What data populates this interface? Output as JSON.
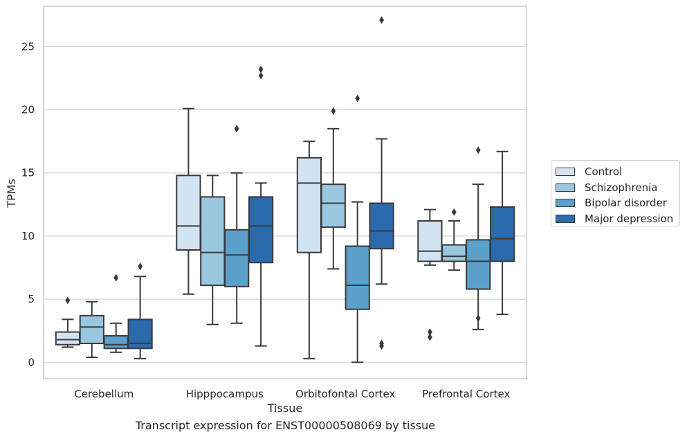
{
  "chart_data": {
    "type": "box",
    "title": "",
    "xlabel": "Tissue",
    "ylabel": "TPMs",
    "caption": "Transcript expression for ENST00000508069 by tissue",
    "ylim": [
      -1.3,
      28.2
    ],
    "yticks": [
      0,
      5,
      10,
      15,
      20,
      25
    ],
    "grid": "horizontal",
    "legend_position": "right",
    "categories": [
      "Cerebellum",
      "Hipppocampus",
      "Orbitofontal Cortex",
      "Prefrontal Cortex"
    ],
    "series": [
      {
        "name": "Control",
        "color": "#d2e3f2",
        "boxes": [
          {
            "whislo": 1.2,
            "q1": 1.4,
            "med": 1.8,
            "q3": 2.4,
            "whishi": 3.4,
            "fliers": [
              4.9
            ]
          },
          {
            "whislo": 5.4,
            "q1": 8.9,
            "med": 10.8,
            "q3": 14.8,
            "whishi": 20.1,
            "fliers": []
          },
          {
            "whislo": 0.3,
            "q1": 8.7,
            "med": 14.2,
            "q3": 16.2,
            "whishi": 17.5,
            "fliers": []
          },
          {
            "whislo": 7.7,
            "q1": 8.0,
            "med": 8.8,
            "q3": 11.2,
            "whishi": 12.1,
            "fliers": [
              2.0,
              2.4
            ]
          }
        ]
      },
      {
        "name": "Schizophrenia",
        "color": "#9ac7e0",
        "boxes": [
          {
            "whislo": 0.4,
            "q1": 1.5,
            "med": 2.8,
            "q3": 3.7,
            "whishi": 4.8,
            "fliers": []
          },
          {
            "whislo": 3.0,
            "q1": 6.1,
            "med": 8.7,
            "q3": 13.1,
            "whishi": 14.8,
            "fliers": []
          },
          {
            "whislo": 7.4,
            "q1": 10.7,
            "med": 12.6,
            "q3": 14.1,
            "whishi": 18.5,
            "fliers": [
              19.9
            ]
          },
          {
            "whislo": 7.3,
            "q1": 8.0,
            "med": 8.4,
            "q3": 9.3,
            "whishi": 11.2,
            "fliers": [
              11.9
            ]
          }
        ]
      },
      {
        "name": "Bipolar disorder",
        "color": "#5b9fcb",
        "boxes": [
          {
            "whislo": 0.8,
            "q1": 1.1,
            "med": 1.4,
            "q3": 2.1,
            "whishi": 3.1,
            "fliers": [
              6.7
            ]
          },
          {
            "whislo": 3.1,
            "q1": 6.0,
            "med": 8.5,
            "q3": 10.5,
            "whishi": 15.0,
            "fliers": [
              18.5
            ]
          },
          {
            "whislo": 0.0,
            "q1": 4.2,
            "med": 6.1,
            "q3": 9.2,
            "whishi": 12.7,
            "fliers": [
              20.9
            ]
          },
          {
            "whislo": 2.6,
            "q1": 5.8,
            "med": 8.0,
            "q3": 9.7,
            "whishi": 14.1,
            "fliers": [
              3.5,
              16.8
            ]
          }
        ]
      },
      {
        "name": "Major depression",
        "color": "#2b6aab",
        "boxes": [
          {
            "whislo": 0.3,
            "q1": 1.1,
            "med": 1.5,
            "q3": 3.4,
            "whishi": 6.8,
            "fliers": [
              7.6
            ]
          },
          {
            "whislo": 1.3,
            "q1": 7.9,
            "med": 10.8,
            "q3": 13.1,
            "whishi": 14.2,
            "fliers": [
              22.7,
              23.2
            ]
          },
          {
            "whislo": 6.2,
            "q1": 9.0,
            "med": 10.4,
            "q3": 12.6,
            "whishi": 17.7,
            "fliers": [
              1.3,
              1.5,
              27.1
            ]
          },
          {
            "whislo": 3.8,
            "q1": 8.0,
            "med": 9.8,
            "q3": 12.3,
            "whishi": 16.7,
            "fliers": []
          }
        ]
      }
    ]
  }
}
